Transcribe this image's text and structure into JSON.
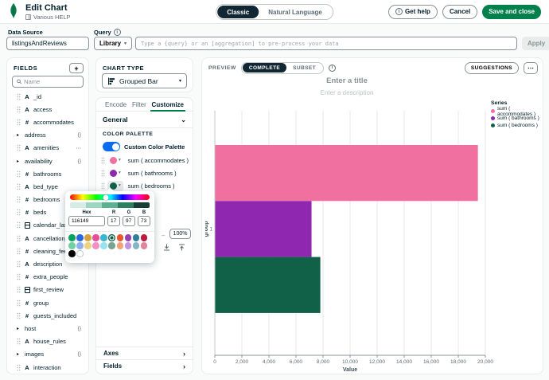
{
  "icons": {
    "info": "i",
    "plus": "+",
    "caret_down": "▾",
    "chevron_down": "⌄",
    "chevron_right": "›",
    "ellipsis": "⋯",
    "dash": "–",
    "expand": "▸",
    "string": "A",
    "number": "#"
  },
  "colors": {
    "brand_green": "#00804A",
    "dark_pill": "#112733",
    "toggle_blue": "#0C6BF0",
    "accent_text": "#001E2B",
    "muted_text": "#5C6C75"
  },
  "header": {
    "title": "Edit Chart",
    "subtitle": "Various HELP",
    "mode_toggle": {
      "options": [
        "Classic",
        "Natural Language"
      ],
      "selected": "Classic"
    },
    "get_help_label": "Get help",
    "cancel_label": "Cancel",
    "save_label": "Save and close"
  },
  "query_bar": {
    "data_source_label": "Data Source",
    "data_source_value": "listingsAndReviews",
    "query_label": "Query",
    "library_label": "Library",
    "query_placeholder": "Type a {query} or an [aggregation] to pre-process your data",
    "apply_label": "Apply"
  },
  "fields_panel": {
    "title": "FIELDS",
    "search_placeholder": "Name",
    "items": [
      {
        "name": "_id",
        "icon": "string"
      },
      {
        "name": "access",
        "icon": "string"
      },
      {
        "name": "accommodates",
        "icon": "number"
      },
      {
        "name": "address",
        "icon": "none",
        "expandable": true,
        "badge": "{}"
      },
      {
        "name": "amenities",
        "icon": "string",
        "badge": "⋯"
      },
      {
        "name": "availability",
        "icon": "none",
        "expandable": true,
        "badge": "{}"
      },
      {
        "name": "bathrooms",
        "icon": "number"
      },
      {
        "name": "bed_type",
        "icon": "string"
      },
      {
        "name": "bedrooms",
        "icon": "number"
      },
      {
        "name": "beds",
        "icon": "number"
      },
      {
        "name": "calendar_last_s",
        "icon": "date"
      },
      {
        "name": "cancellation_po",
        "icon": "string"
      },
      {
        "name": "cleaning_fee",
        "icon": "number"
      },
      {
        "name": "description",
        "icon": "string"
      },
      {
        "name": "extra_people",
        "icon": "number"
      },
      {
        "name": "first_review",
        "icon": "date"
      },
      {
        "name": "group",
        "icon": "number"
      },
      {
        "name": "guests_included",
        "icon": "number"
      },
      {
        "name": "host",
        "icon": "none",
        "expandable": true,
        "badge": "{}"
      },
      {
        "name": "house_rules",
        "icon": "string"
      },
      {
        "name": "images",
        "icon": "none",
        "expandable": true,
        "badge": "{}"
      },
      {
        "name": "interaction",
        "icon": "string"
      }
    ]
  },
  "chart_type_panel": {
    "label": "CHART TYPE",
    "value": "Grouped Bar"
  },
  "customize_panel": {
    "tabs": [
      "Encode",
      "Filter",
      "Customize"
    ],
    "active_tab": "Customize",
    "section_label": "General",
    "color_palette_label": "COLOR PALETTE",
    "custom_palette_label": "Custom Color Palette",
    "series": [
      {
        "label": "sum ( accommodates )",
        "color": "#F071A0"
      },
      {
        "label": "sum ( bathrooms )",
        "color": "#9027B0"
      },
      {
        "label": "sum ( bedrooms )",
        "color": "#116149"
      }
    ],
    "open_series_index": 2,
    "opacity_value": "100%",
    "axes_label": "Axes",
    "fields_label": "Fields"
  },
  "color_picker": {
    "hex_label": "Hex",
    "r_label": "R",
    "g_label": "G",
    "b_label": "B",
    "hex_value": "116149",
    "r_value": "17",
    "g_value": "97",
    "b_value": "73",
    "hue_marker_position": "45%",
    "shades": [
      "#D5EDE4",
      "#9CD6C0",
      "#5FAF93",
      "#2E7E62",
      "#173F35"
    ],
    "selected_swatch": "#116149",
    "swatch_rows": [
      [
        "#00A35C",
        "#2968DC",
        "#D9A13A",
        "#EA4C9C",
        "#38B6D2",
        "#116149",
        "#E8562E",
        "#9A3DB8",
        "#31809B",
        "#BE1A3F"
      ],
      [
        "#71CFA2",
        "#8FB0EF",
        "#EDD380",
        "#F290C4",
        "#96E2EF",
        "#76A28F",
        "#F2A17B",
        "#C493DE",
        "#86B6C6",
        "#E2859B"
      ],
      [
        "#000000",
        "#FFFFFF"
      ]
    ]
  },
  "preview_panel": {
    "preview_label": "PREVIEW",
    "toggle": {
      "options": [
        "COMPLETE",
        "SUBSET"
      ],
      "selected": "COMPLETE"
    },
    "suggestions_label": "SUGGESTIONS",
    "title_placeholder": "Enter a title",
    "description_placeholder": "Enter a description"
  },
  "chart_data": {
    "type": "bar",
    "orientation": "horizontal",
    "title": "",
    "categories": [
      "1"
    ],
    "series": [
      {
        "name": "sum ( accommodates )",
        "color": "#F071A0",
        "values": [
          19450
        ]
      },
      {
        "name": "sum ( bathrooms )",
        "color": "#9027B0",
        "values": [
          7150
        ]
      },
      {
        "name": "sum ( bedrooms )",
        "color": "#116149",
        "values": [
          7800
        ]
      }
    ],
    "xlabel": "Value",
    "ylabel": "group",
    "xlim": [
      0,
      20000
    ],
    "xticks": [
      "0",
      "2,000",
      "4,000",
      "6,000",
      "8,000",
      "10,000",
      "12,000",
      "14,000",
      "16,000",
      "18,000",
      "20,000"
    ],
    "grid": true,
    "legend_title": "Series",
    "legend_position": "right"
  }
}
